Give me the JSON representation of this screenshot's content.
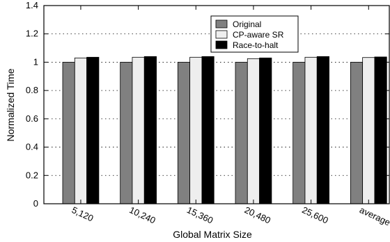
{
  "chart_data": {
    "type": "bar",
    "title": "",
    "xlabel": "Global Matrix Size",
    "ylabel": "Normalized Time",
    "categories": [
      "5,120",
      "10,240",
      "15,360",
      "20,480",
      "25,600",
      "average"
    ],
    "yticks": [
      "0",
      "0.2",
      "0.4",
      "0.6",
      "0.8",
      "1",
      "1.2",
      "1.4"
    ],
    "ylim": [
      0,
      1.4
    ],
    "grid": "horizontal dotted",
    "legend_position": "top-right",
    "series": [
      {
        "name": "Original",
        "color": "#808080",
        "values": [
          1.0,
          1.0,
          1.0,
          1.0,
          1.0,
          1.0
        ]
      },
      {
        "name": "CP-aware SR",
        "color": "#eeeeee",
        "values": [
          1.03,
          1.035,
          1.035,
          1.025,
          1.035,
          1.033
        ]
      },
      {
        "name": "Race-to-halt",
        "color": "#000000",
        "values": [
          1.035,
          1.04,
          1.04,
          1.03,
          1.04,
          1.037
        ]
      }
    ]
  }
}
